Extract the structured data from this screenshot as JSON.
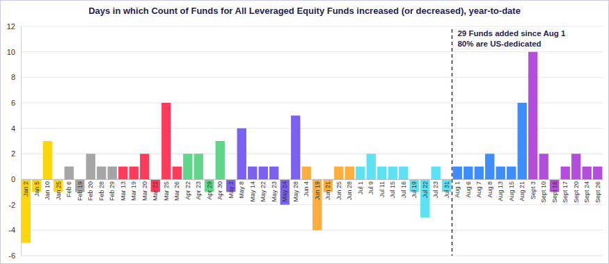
{
  "chart_data": {
    "type": "bar",
    "title": "Days in which Count of Funds for All Leveraged Equity Funds increased (or decreased), year-to-date",
    "categories": [
      "Jan 2",
      "Jan 5",
      "Jan 10",
      "Jan 25",
      "Feb 6",
      "Feb 19",
      "Feb 20",
      "Feb 28",
      "Feb 29",
      "Mar 13",
      "Mar 19",
      "Mar 20",
      "Mar 22",
      "Mar 25",
      "Mar 26",
      "Apr 22",
      "Apr 23",
      "Apr 29",
      "Apr 30",
      "May 2",
      "May 8",
      "May 14",
      "May 22",
      "May 23",
      "May 24",
      "May 28",
      "Jun 4",
      "Jun 19",
      "Jun 21",
      "Jun 25",
      "Jun 28",
      "Jul 1",
      "Jul 9",
      "Jul 11",
      "Jul 15",
      "Jul 16",
      "Jul 19",
      "Jul 22",
      "Jul 23",
      "Jul 31",
      "Aug 1",
      "Aug 6",
      "Aug 7",
      "Aug 8",
      "Aug 13",
      "Aug 15",
      "Aug 21",
      "Sept 3",
      "Sept 10",
      "Sept 16",
      "Sept 17",
      "Sept 20",
      "Sept 24",
      "Sept 26"
    ],
    "values": [
      -5,
      -1,
      3,
      -1,
      1,
      -1,
      2,
      1,
      1,
      1,
      1,
      2,
      -1,
      6,
      1,
      2,
      2,
      -1,
      3,
      -1,
      4,
      1,
      1,
      1,
      -2,
      5,
      1,
      -4,
      -1,
      1,
      1,
      1,
      2,
      1,
      1,
      1,
      -1,
      -3,
      1,
      -1,
      1,
      1,
      1,
      2,
      1,
      1,
      6,
      10,
      2,
      -1,
      1,
      2,
      1,
      1
    ],
    "colors": [
      "#ffd60a",
      "#ffd60a",
      "#ffd60a",
      "#ffd60a",
      "#a6a6a6",
      "#a6a6a6",
      "#a6a6a6",
      "#a6a6a6",
      "#a6a6a6",
      "#ff3b5c",
      "#ff3b5c",
      "#ff3b5c",
      "#ff3b5c",
      "#ff3b5c",
      "#ff3b5c",
      "#5fd68a",
      "#5fd68a",
      "#5fd68a",
      "#5fd68a",
      "#7b61f0",
      "#7b61f0",
      "#7b61f0",
      "#7b61f0",
      "#7b61f0",
      "#7b61f0",
      "#7b61f0",
      "#ffad3b",
      "#ffad3b",
      "#ffad3b",
      "#ffad3b",
      "#ffad3b",
      "#5ce1f5",
      "#5ce1f5",
      "#5ce1f5",
      "#5ce1f5",
      "#5ce1f5",
      "#5ce1f5",
      "#5ce1f5",
      "#5ce1f5",
      "#5ce1f5",
      "#3f8cff",
      "#3f8cff",
      "#3f8cff",
      "#3f8cff",
      "#3f8cff",
      "#3f8cff",
      "#3f8cff",
      "#b44ddb",
      "#b44ddb",
      "#b44ddb",
      "#b44ddb",
      "#b44ddb",
      "#b44ddb",
      "#b44ddb"
    ],
    "ylim": [
      -6,
      12
    ],
    "yticks": [
      -6,
      -4,
      -2,
      0,
      2,
      4,
      6,
      8,
      10,
      12
    ],
    "grid": true,
    "annotation": {
      "lines": [
        "29 Funds added since Aug 1",
        "80% are US-dedicated"
      ],
      "category": "Aug 1"
    }
  }
}
